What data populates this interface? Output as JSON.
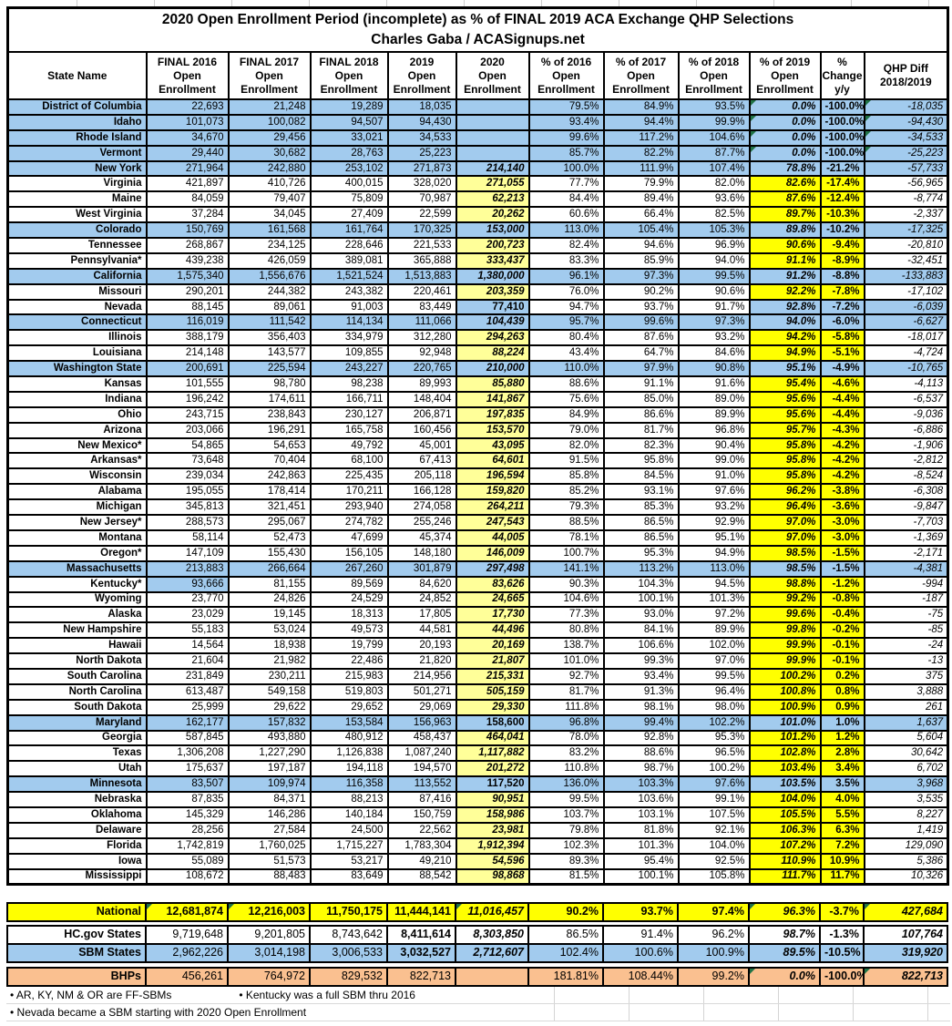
{
  "title": {
    "line1": "2020 Open Enrollment Period (incomplete) as % of FINAL 2019 ACA Exchange QHP Selections",
    "line2": "Charles Gaba / ACASignups.net"
  },
  "colors": {
    "sbm_blue": "#A2CBEE",
    "highlight_yellow": "#FFFF00",
    "estimate_light_yellow": "#FFFF99",
    "bhp_peach": "#FAC090",
    "secondary_text_gray": "#595959",
    "flag_triangle_green": "#217346",
    "white": "#FFFFFF"
  },
  "columns": [
    {
      "key": "name",
      "label": "State Name"
    },
    {
      "key": "e2016",
      "label": "FINAL 2016\nOpen\nEnrollment"
    },
    {
      "key": "e2017",
      "label": "FINAL 2017\nOpen\nEnrollment"
    },
    {
      "key": "e2018",
      "label": "FINAL 2018\nOpen\nEnrollment"
    },
    {
      "key": "e2019",
      "label": "2019\nOpen\nEnrollment"
    },
    {
      "key": "e2020",
      "label": "2020\nOpen\nEnrollment",
      "bg": "yellow"
    },
    {
      "key": "p2016",
      "label": "% of 2016\nOpen\nEnrollment"
    },
    {
      "key": "p2017",
      "label": "% of 2017\nOpen\nEnrollment"
    },
    {
      "key": "p2018",
      "label": "% of 2018\nOpen\nEnrollment"
    },
    {
      "key": "p2019",
      "label": "% of 2019\nOpen\nEnrollment",
      "bg": "yellow"
    },
    {
      "key": "chg",
      "label": "%\nChange\ny/y",
      "bg": "yellow"
    },
    {
      "key": "diff",
      "label": "QHP Diff\n2018/2019"
    }
  ],
  "rows": [
    {
      "state": "District of Columbia",
      "sbm": true,
      "tri": [
        8,
        10
      ],
      "v": [
        "22,693",
        "21,248",
        "19,289",
        "18,035",
        "",
        "79.5%",
        "84.9%",
        "93.5%",
        "0.0%",
        "-100.0%",
        "-18,035"
      ]
    },
    {
      "state": "Idaho",
      "sbm": true,
      "tri": [
        8,
        10
      ],
      "v": [
        "101,073",
        "100,082",
        "94,507",
        "94,430",
        "",
        "93.4%",
        "94.4%",
        "99.9%",
        "0.0%",
        "-100.0%",
        "-94,430"
      ]
    },
    {
      "state": "Rhode Island",
      "sbm": true,
      "tri": [
        8,
        10
      ],
      "v": [
        "34,670",
        "29,456",
        "33,021",
        "34,533",
        "",
        "99.6%",
        "117.2%",
        "104.6%",
        "0.0%",
        "-100.0%",
        "-34,533"
      ]
    },
    {
      "state": "Vermont",
      "sbm": true,
      "tri": [
        8,
        10
      ],
      "v": [
        "29,440",
        "30,682",
        "28,763",
        "25,223",
        "",
        "85.7%",
        "82.2%",
        "87.7%",
        "0.0%",
        "-100.0%",
        "-25,223"
      ]
    },
    {
      "state": "New York",
      "sbm": true,
      "v": [
        "271,964",
        "242,880",
        "253,102",
        "271,873",
        "214,140",
        "100.0%",
        "111.9%",
        "107.4%",
        "78.8%",
        "-21.2%",
        "-57,733"
      ]
    },
    {
      "state": "Virginia",
      "v": [
        "421,897",
        "410,726",
        "400,015",
        "328,020",
        "271,055",
        "77.7%",
        "79.9%",
        "82.0%",
        "82.6%",
        "-17.4%",
        "-56,965"
      ]
    },
    {
      "state": "Maine",
      "v": [
        "84,059",
        "79,407",
        "75,809",
        "70,987",
        "62,213",
        "84.4%",
        "89.4%",
        "93.6%",
        "87.6%",
        "-12.4%",
        "-8,774"
      ]
    },
    {
      "state": "West Virginia",
      "v": [
        "37,284",
        "34,045",
        "27,409",
        "22,599",
        "20,262",
        "60.6%",
        "66.4%",
        "82.5%",
        "89.7%",
        "-10.3%",
        "-2,337"
      ]
    },
    {
      "state": "Colorado",
      "sbm": true,
      "v": [
        "150,769",
        "161,568",
        "161,764",
        "170,325",
        "153,000",
        "113.0%",
        "105.4%",
        "105.3%",
        "89.8%",
        "-10.2%",
        "-17,325"
      ]
    },
    {
      "state": "Tennessee",
      "v": [
        "268,867",
        "234,125",
        "228,646",
        "221,533",
        "200,723",
        "82.4%",
        "94.6%",
        "96.9%",
        "90.6%",
        "-9.4%",
        "-20,810"
      ]
    },
    {
      "state": "Pennsylvania*",
      "v": [
        "439,238",
        "426,059",
        "389,081",
        "365,888",
        "333,437",
        "83.3%",
        "85.9%",
        "94.0%",
        "91.1%",
        "-8.9%",
        "-32,451"
      ]
    },
    {
      "state": "California",
      "sbm": true,
      "v": [
        "1,575,340",
        "1,556,676",
        "1,521,524",
        "1,513,883",
        "1,380,000",
        "96.1%",
        "97.3%",
        "99.5%",
        "91.2%",
        "-8.8%",
        "-133,883"
      ]
    },
    {
      "state": "Missouri",
      "v": [
        "290,201",
        "244,382",
        "243,382",
        "220,461",
        "203,359",
        "76.0%",
        "90.2%",
        "90.6%",
        "92.2%",
        "-7.8%",
        "-17,102"
      ]
    },
    {
      "state": "Nevada",
      "blue": [
        4,
        8,
        9,
        10
      ],
      "e2020_upright": true,
      "v": [
        "88,145",
        "89,061",
        "91,003",
        "83,449",
        "77,410",
        "94.7%",
        "93.7%",
        "91.7%",
        "92.8%",
        "-7.2%",
        "-6,039"
      ]
    },
    {
      "state": "Connecticut",
      "sbm": true,
      "v": [
        "116,019",
        "111,542",
        "114,134",
        "111,066",
        "104,439",
        "95.7%",
        "99.6%",
        "97.3%",
        "94.0%",
        "-6.0%",
        "-6,627"
      ]
    },
    {
      "state": "Illinois",
      "v": [
        "388,179",
        "356,403",
        "334,979",
        "312,280",
        "294,263",
        "80.4%",
        "87.6%",
        "93.2%",
        "94.2%",
        "-5.8%",
        "-18,017"
      ]
    },
    {
      "state": "Louisiana",
      "v": [
        "214,148",
        "143,577",
        "109,855",
        "92,948",
        "88,224",
        "43.4%",
        "64.7%",
        "84.6%",
        "94.9%",
        "-5.1%",
        "-4,724"
      ]
    },
    {
      "state": "Washington State",
      "sbm": true,
      "v": [
        "200,691",
        "225,594",
        "243,227",
        "220,765",
        "210,000",
        "110.0%",
        "97.9%",
        "90.8%",
        "95.1%",
        "-4.9%",
        "-10,765"
      ]
    },
    {
      "state": "Kansas",
      "v": [
        "101,555",
        "98,780",
        "98,238",
        "89,993",
        "85,880",
        "88.6%",
        "91.1%",
        "91.6%",
        "95.4%",
        "-4.6%",
        "-4,113"
      ]
    },
    {
      "state": "Indiana",
      "v": [
        "196,242",
        "174,611",
        "166,711",
        "148,404",
        "141,867",
        "75.6%",
        "85.0%",
        "89.0%",
        "95.6%",
        "-4.4%",
        "-6,537"
      ]
    },
    {
      "state": "Ohio",
      "v": [
        "243,715",
        "238,843",
        "230,127",
        "206,871",
        "197,835",
        "84.9%",
        "86.6%",
        "89.9%",
        "95.6%",
        "-4.4%",
        "-9,036"
      ]
    },
    {
      "state": "Arizona",
      "v": [
        "203,066",
        "196,291",
        "165,758",
        "160,456",
        "153,570",
        "79.0%",
        "81.7%",
        "96.8%",
        "95.7%",
        "-4.3%",
        "-6,886"
      ]
    },
    {
      "state": "New Mexico*",
      "v": [
        "54,865",
        "54,653",
        "49,792",
        "45,001",
        "43,095",
        "82.0%",
        "82.3%",
        "90.4%",
        "95.8%",
        "-4.2%",
        "-1,906"
      ]
    },
    {
      "state": "Arkansas*",
      "v": [
        "73,648",
        "70,404",
        "68,100",
        "67,413",
        "64,601",
        "91.5%",
        "95.8%",
        "99.0%",
        "95.8%",
        "-4.2%",
        "-2,812"
      ]
    },
    {
      "state": "Wisconsin",
      "v": [
        "239,034",
        "242,863",
        "225,435",
        "205,118",
        "196,594",
        "85.8%",
        "84.5%",
        "91.0%",
        "95.8%",
        "-4.2%",
        "-8,524"
      ]
    },
    {
      "state": "Alabama",
      "v": [
        "195,055",
        "178,414",
        "170,211",
        "166,128",
        "159,820",
        "85.2%",
        "93.1%",
        "97.6%",
        "96.2%",
        "-3.8%",
        "-6,308"
      ]
    },
    {
      "state": "Michigan",
      "v": [
        "345,813",
        "321,451",
        "293,940",
        "274,058",
        "264,211",
        "79.3%",
        "85.3%",
        "93.2%",
        "96.4%",
        "-3.6%",
        "-9,847"
      ]
    },
    {
      "state": "New Jersey*",
      "v": [
        "288,573",
        "295,067",
        "274,782",
        "255,246",
        "247,543",
        "88.5%",
        "86.5%",
        "92.9%",
        "97.0%",
        "-3.0%",
        "-7,703"
      ]
    },
    {
      "state": "Montana",
      "v": [
        "58,114",
        "52,473",
        "47,699",
        "45,374",
        "44,005",
        "78.1%",
        "86.5%",
        "95.1%",
        "97.0%",
        "-3.0%",
        "-1,369"
      ]
    },
    {
      "state": "Oregon*",
      "v": [
        "147,109",
        "155,430",
        "156,105",
        "148,180",
        "146,009",
        "100.7%",
        "95.3%",
        "94.9%",
        "98.5%",
        "-1.5%",
        "-2,171"
      ]
    },
    {
      "state": "Massachusetts",
      "sbm": true,
      "v": [
        "213,883",
        "266,664",
        "267,260",
        "301,879",
        "297,498",
        "141.1%",
        "113.2%",
        "113.0%",
        "98.5%",
        "-1.5%",
        "-4,381"
      ]
    },
    {
      "state": "Kentucky*",
      "blue": [
        0
      ],
      "v": [
        "93,666",
        "81,155",
        "89,569",
        "84,620",
        "83,626",
        "90.3%",
        "104.3%",
        "94.5%",
        "98.8%",
        "-1.2%",
        "-994"
      ]
    },
    {
      "state": "Wyoming",
      "v": [
        "23,770",
        "24,826",
        "24,529",
        "24,852",
        "24,665",
        "104.6%",
        "100.1%",
        "101.3%",
        "99.2%",
        "-0.8%",
        "-187"
      ]
    },
    {
      "state": "Alaska",
      "v": [
        "23,029",
        "19,145",
        "18,313",
        "17,805",
        "17,730",
        "77.3%",
        "93.0%",
        "97.2%",
        "99.6%",
        "-0.4%",
        "-75"
      ]
    },
    {
      "state": "New Hampshire",
      "v": [
        "55,183",
        "53,024",
        "49,573",
        "44,581",
        "44,496",
        "80.8%",
        "84.1%",
        "89.9%",
        "99.8%",
        "-0.2%",
        "-85"
      ]
    },
    {
      "state": "Hawaii",
      "v": [
        "14,564",
        "18,938",
        "19,799",
        "20,193",
        "20,169",
        "138.7%",
        "106.6%",
        "102.0%",
        "99.9%",
        "-0.1%",
        "-24"
      ]
    },
    {
      "state": "North Dakota",
      "v": [
        "21,604",
        "21,982",
        "22,486",
        "21,820",
        "21,807",
        "101.0%",
        "99.3%",
        "97.0%",
        "99.9%",
        "-0.1%",
        "-13"
      ]
    },
    {
      "state": "South Carolina",
      "v": [
        "231,849",
        "230,211",
        "215,983",
        "214,956",
        "215,331",
        "92.7%",
        "93.4%",
        "99.5%",
        "100.2%",
        "0.2%",
        "375"
      ]
    },
    {
      "state": "North Carolina",
      "v": [
        "613,487",
        "549,158",
        "519,803",
        "501,271",
        "505,159",
        "81.7%",
        "91.3%",
        "96.4%",
        "100.8%",
        "0.8%",
        "3,888"
      ]
    },
    {
      "state": "South Dakota",
      "v": [
        "25,999",
        "29,622",
        "29,652",
        "29,069",
        "29,330",
        "111.8%",
        "98.1%",
        "98.0%",
        "100.9%",
        "0.9%",
        "261"
      ]
    },
    {
      "state": "Maryland",
      "sbm": true,
      "e2020_upright": true,
      "v": [
        "162,177",
        "157,832",
        "153,584",
        "156,963",
        "158,600",
        "96.8%",
        "99.4%",
        "102.2%",
        "101.0%",
        "1.0%",
        "1,637"
      ]
    },
    {
      "state": "Georgia",
      "v": [
        "587,845",
        "493,880",
        "480,912",
        "458,437",
        "464,041",
        "78.0%",
        "92.8%",
        "95.3%",
        "101.2%",
        "1.2%",
        "5,604"
      ]
    },
    {
      "state": "Texas",
      "v": [
        "1,306,208",
        "1,227,290",
        "1,126,838",
        "1,087,240",
        "1,117,882",
        "83.2%",
        "88.6%",
        "96.5%",
        "102.8%",
        "2.8%",
        "30,642"
      ]
    },
    {
      "state": "Utah",
      "v": [
        "175,637",
        "197,187",
        "194,118",
        "194,570",
        "201,272",
        "110.8%",
        "98.7%",
        "100.2%",
        "103.4%",
        "3.4%",
        "6,702"
      ]
    },
    {
      "state": "Minnesota",
      "sbm": true,
      "e2020_upright": true,
      "v": [
        "83,507",
        "109,974",
        "116,358",
        "113,552",
        "117,520",
        "136.0%",
        "103.3%",
        "97.6%",
        "103.5%",
        "3.5%",
        "3,968"
      ]
    },
    {
      "state": "Nebraska",
      "v": [
        "87,835",
        "84,371",
        "88,213",
        "87,416",
        "90,951",
        "99.5%",
        "103.6%",
        "99.1%",
        "104.0%",
        "4.0%",
        "3,535"
      ]
    },
    {
      "state": "Oklahoma",
      "v": [
        "145,329",
        "146,286",
        "140,184",
        "150,759",
        "158,986",
        "103.7%",
        "103.1%",
        "107.5%",
        "105.5%",
        "5.5%",
        "8,227"
      ]
    },
    {
      "state": "Delaware",
      "v": [
        "28,256",
        "27,584",
        "24,500",
        "22,562",
        "23,981",
        "79.8%",
        "81.8%",
        "92.1%",
        "106.3%",
        "6.3%",
        "1,419"
      ]
    },
    {
      "state": "Florida",
      "v": [
        "1,742,819",
        "1,760,025",
        "1,715,227",
        "1,783,304",
        "1,912,394",
        "102.3%",
        "101.3%",
        "104.0%",
        "107.2%",
        "7.2%",
        "129,090"
      ]
    },
    {
      "state": "Iowa",
      "v": [
        "55,089",
        "51,573",
        "53,217",
        "49,210",
        "54,596",
        "89.3%",
        "95.4%",
        "92.5%",
        "110.9%",
        "10.9%",
        "5,386"
      ]
    },
    {
      "state": "Mississippi",
      "v": [
        "108,672",
        "88,483",
        "83,649",
        "88,542",
        "98,868",
        "81.5%",
        "100.1%",
        "105.8%",
        "111.7%",
        "11.7%",
        "10,326"
      ]
    }
  ],
  "summary": [
    {
      "label": "National",
      "bg": "highlight_yellow",
      "bold_all": true,
      "tri": [
        0,
        1,
        4,
        8,
        10
      ],
      "e2019_bold": true,
      "v": [
        "12,681,874",
        "12,216,003",
        "11,750,175",
        "11,444,141",
        "11,016,457",
        "90.2%",
        "93.7%",
        "97.4%",
        "96.3%",
        "-3.7%",
        "427,684"
      ]
    },
    {
      "label": "HC.gov States",
      "bg": "white",
      "e2019_bold": true,
      "v": [
        "9,719,648",
        "9,201,805",
        "8,743,642",
        "8,411,614",
        "8,303,850",
        "86.5%",
        "91.4%",
        "96.2%",
        "98.7%",
        "-1.3%",
        "107,764"
      ]
    },
    {
      "label": "SBM States",
      "bg": "sbm_blue",
      "e2019_bold": true,
      "v": [
        "2,962,226",
        "3,014,198",
        "3,006,533",
        "3,032,527",
        "2,712,607",
        "102.4%",
        "100.6%",
        "100.9%",
        "89.5%",
        "-10.5%",
        "319,920"
      ]
    },
    {
      "label": "BHPs",
      "bg": "bhp_peach",
      "tri": [
        8,
        10
      ],
      "v": [
        "456,261",
        "764,972",
        "829,532",
        "822,713",
        "",
        "181.81%",
        "108.44%",
        "99.2%",
        "0.0%",
        "-100.0%",
        "822,713"
      ]
    }
  ],
  "footnotes": {
    "line1a": "• AR, KY, NM & OR are FF-SBMs",
    "line1b": "• Kentucky was a full SBM thru 2016",
    "line2": "• Nevada became a SBM starting with 2020 Open Enrollment"
  }
}
